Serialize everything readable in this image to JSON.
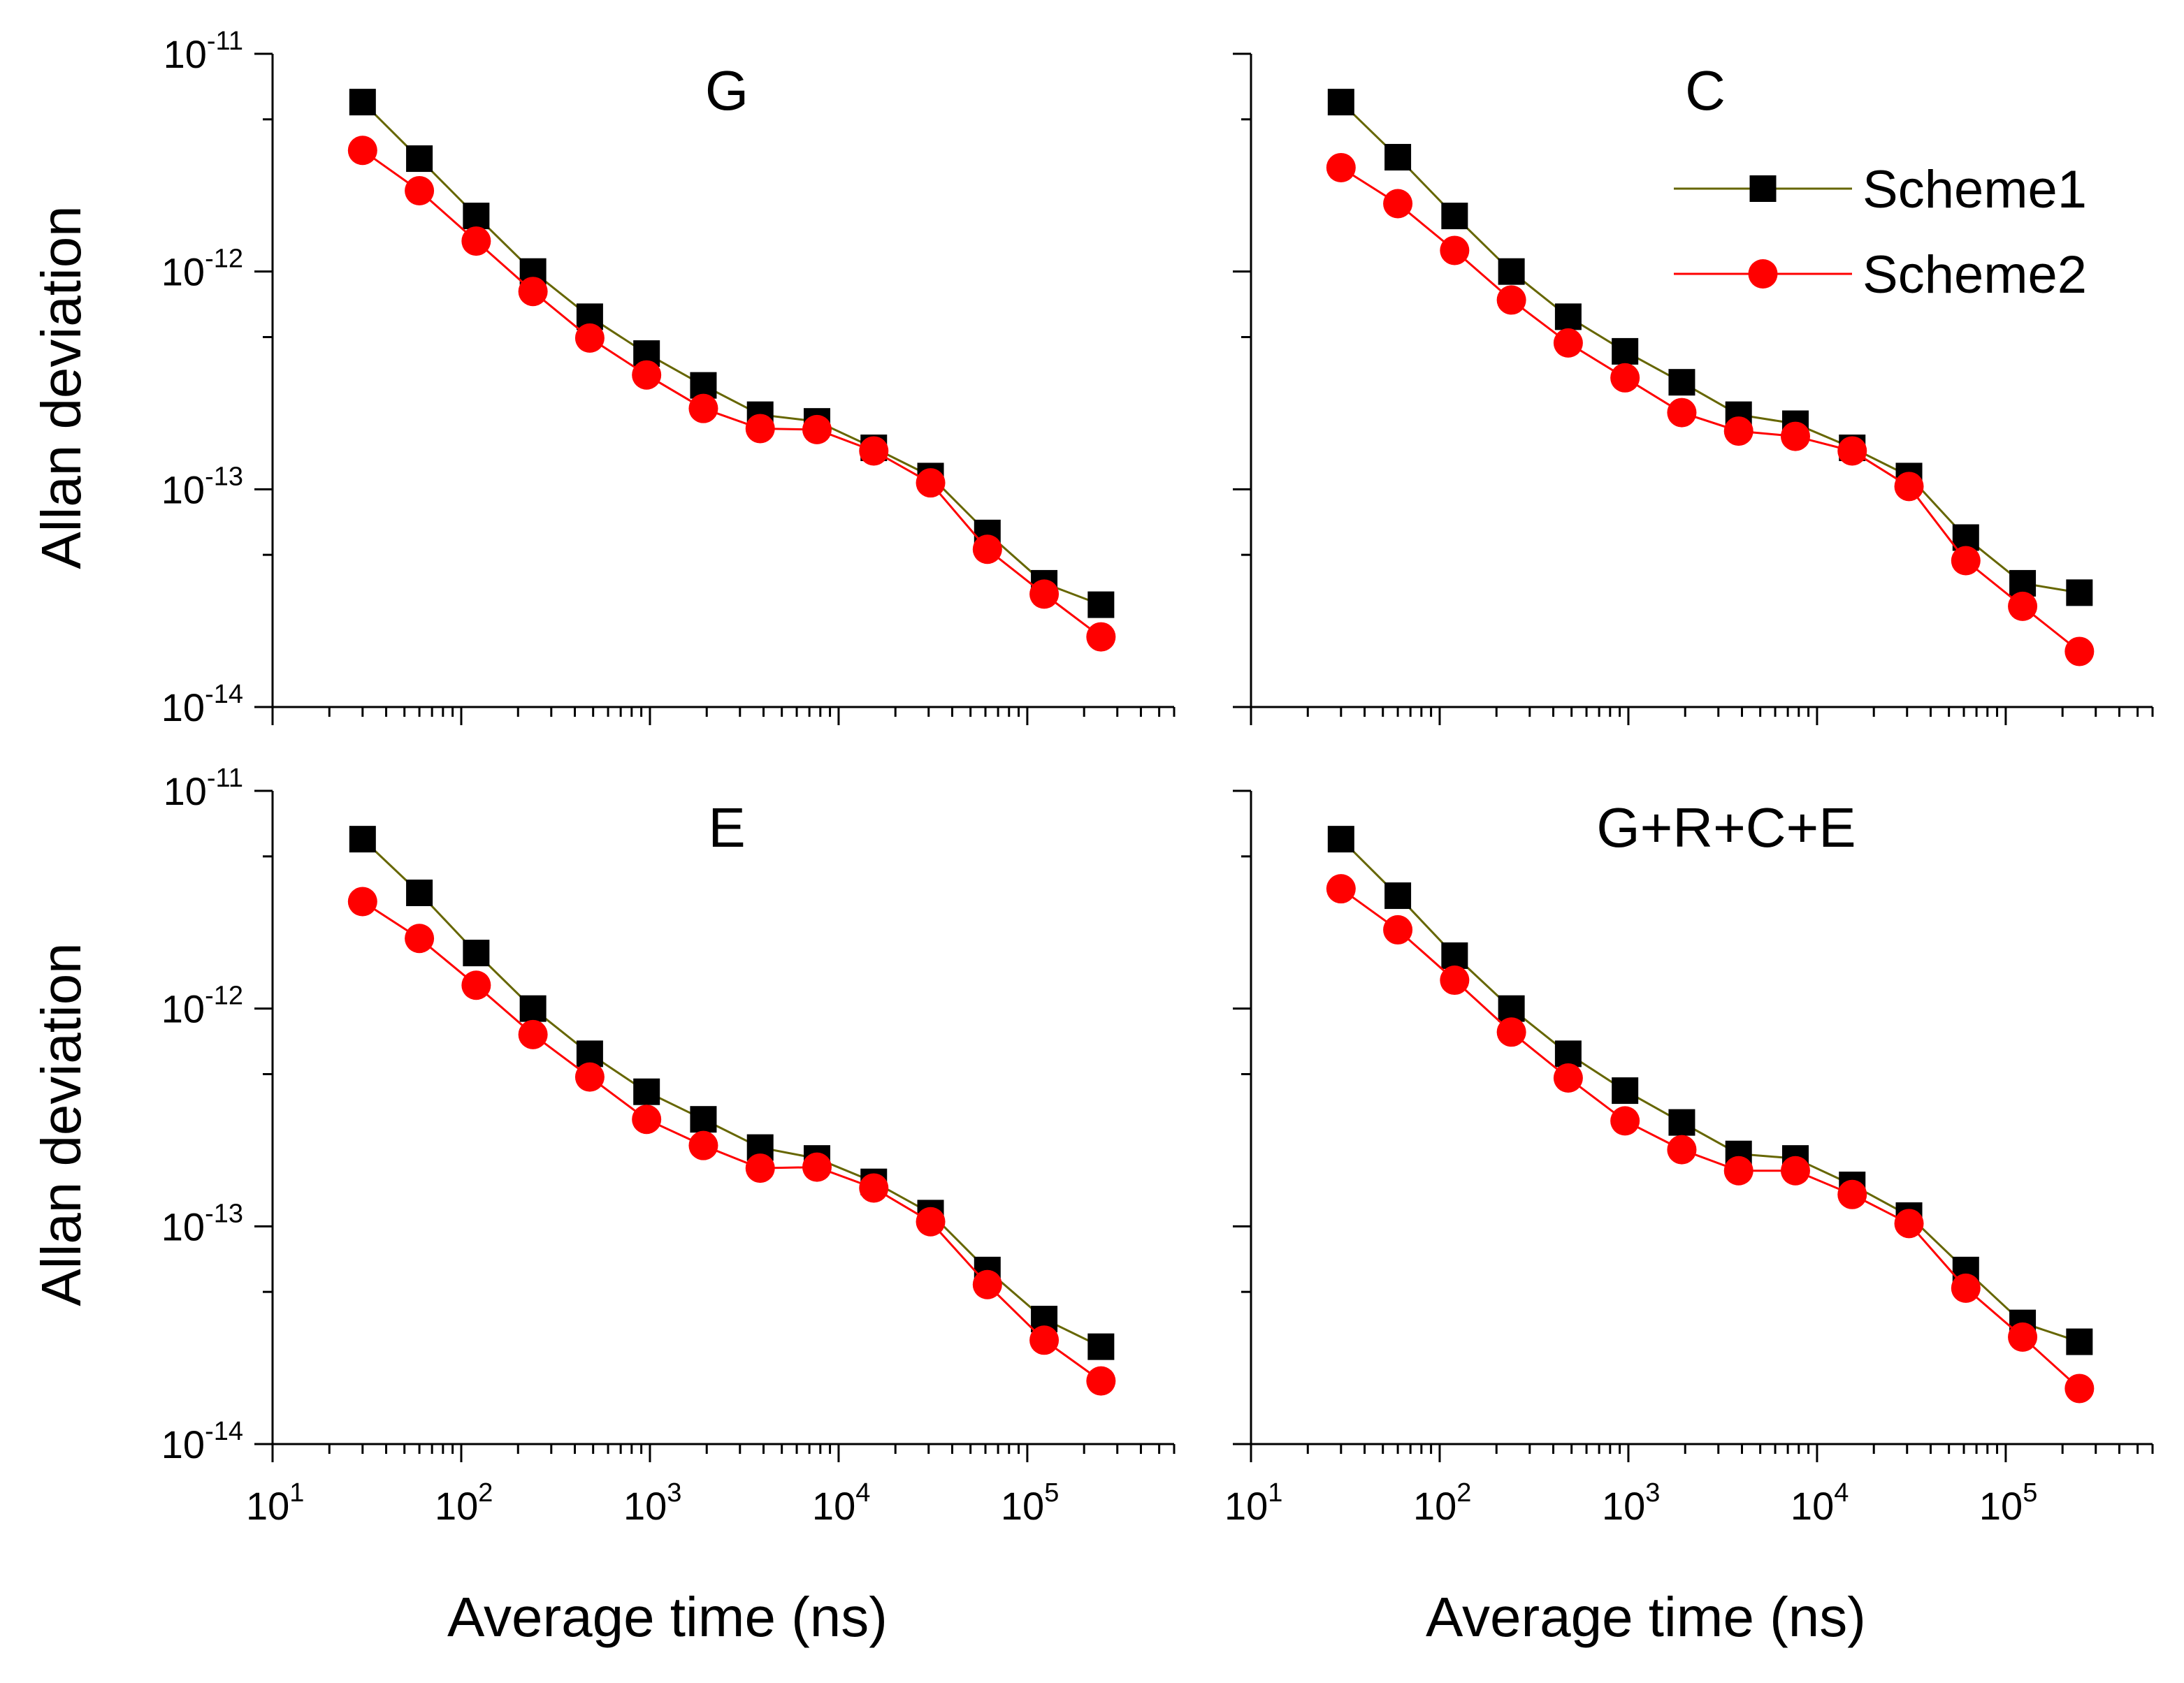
{
  "chart_data": {
    "type": "line",
    "xlabel": "Average time (ns)",
    "ylabel": "Allan deviation",
    "xscale": "log",
    "yscale": "log",
    "xlim": [
      10,
      600000
    ],
    "ylim": [
      1e-14,
      1e-11
    ],
    "x_tick_labels": [
      {
        "base": "10",
        "exp": "1"
      },
      {
        "base": "10",
        "exp": "2"
      },
      {
        "base": "10",
        "exp": "3"
      },
      {
        "base": "10",
        "exp": "4"
      },
      {
        "base": "10",
        "exp": "5"
      }
    ],
    "y_tick_labels": [
      {
        "base": "10",
        "exp": "-11"
      },
      {
        "base": "10",
        "exp": "-12"
      },
      {
        "base": "10",
        "exp": "-13"
      },
      {
        "base": "10",
        "exp": "-14"
      }
    ],
    "x": [
      30,
      60,
      120,
      240,
      480,
      960,
      1920,
      3840,
      7680,
      15360,
      30720,
      61440,
      122880,
      245760
    ],
    "legend": {
      "placement": "top-right of upper-right panel",
      "entries": [
        "Scheme1",
        "Scheme2"
      ]
    },
    "series_styles": [
      {
        "name": "Scheme1",
        "marker": "square",
        "marker_color": "#000000",
        "line_color": "#666600"
      },
      {
        "name": "Scheme2",
        "marker": "circle",
        "marker_color": "#ff0000",
        "line_color": "#ff0000"
      }
    ],
    "panels": [
      {
        "title": "G",
        "series": [
          {
            "name": "Scheme1",
            "values": [
              6e-12,
              3.3e-12,
              1.8e-12,
              1e-12,
              6.2e-13,
              4.2e-13,
              3e-13,
              2.2e-13,
              2.05e-13,
              1.55e-13,
              1.15e-13,
              6.3e-14,
              3.7e-14,
              2.95e-14
            ]
          },
          {
            "name": "Scheme2",
            "values": [
              3.6e-12,
              2.35e-12,
              1.38e-12,
              8.1e-13,
              4.95e-13,
              3.35e-13,
              2.35e-13,
              1.9e-13,
              1.88e-13,
              1.5e-13,
              1.07e-13,
              5.3e-14,
              3.3e-14,
              2.1e-14
            ]
          }
        ]
      },
      {
        "title": "C",
        "series": [
          {
            "name": "Scheme1",
            "values": [
              6e-12,
              3.35e-12,
              1.8e-12,
              1e-12,
              6.2e-13,
              4.3e-13,
              3.1e-13,
              2.2e-13,
              2e-13,
              1.55e-13,
              1.15e-13,
              6e-14,
              3.7e-14,
              3.35e-14
            ]
          },
          {
            "name": "Scheme2",
            "values": [
              3e-12,
              2.05e-12,
              1.25e-12,
              7.4e-13,
              4.7e-13,
              3.25e-13,
              2.25e-13,
              1.85e-13,
              1.75e-13,
              1.5e-13,
              1.03e-13,
              4.7e-14,
              2.9e-14,
              1.8e-14
            ]
          }
        ]
      },
      {
        "title": "E",
        "series": [
          {
            "name": "Scheme1",
            "values": [
              6e-12,
              3.4e-12,
              1.8e-12,
              1e-12,
              6.2e-13,
              4.15e-13,
              3.1e-13,
              2.3e-13,
              2.05e-13,
              1.6e-13,
              1.15e-13,
              6.3e-14,
              3.75e-14,
              2.8e-14
            ]
          },
          {
            "name": "Scheme2",
            "values": [
              3.1e-12,
              2.1e-12,
              1.28e-12,
              7.6e-13,
              4.85e-13,
              3.1e-13,
              2.35e-13,
              1.85e-13,
              1.87e-13,
              1.5e-13,
              1.05e-13,
              5.4e-14,
              3e-14,
              1.95e-14
            ]
          }
        ]
      },
      {
        "title": "G+R+C+E",
        "series": [
          {
            "name": "Scheme1",
            "values": [
              6e-12,
              3.3e-12,
              1.75e-12,
              1e-12,
              6.2e-13,
              4.2e-13,
              3e-13,
              2.15e-13,
              2.05e-13,
              1.55e-13,
              1.12e-13,
              6.3e-14,
              3.6e-14,
              2.95e-14
            ]
          },
          {
            "name": "Scheme2",
            "values": [
              3.55e-12,
              2.3e-12,
              1.35e-12,
              7.8e-13,
              4.8e-13,
              3.05e-13,
              2.25e-13,
              1.8e-13,
              1.8e-13,
              1.4e-13,
              1.03e-13,
              5.2e-14,
              3.1e-14,
              1.8e-14
            ]
          }
        ]
      }
    ]
  }
}
